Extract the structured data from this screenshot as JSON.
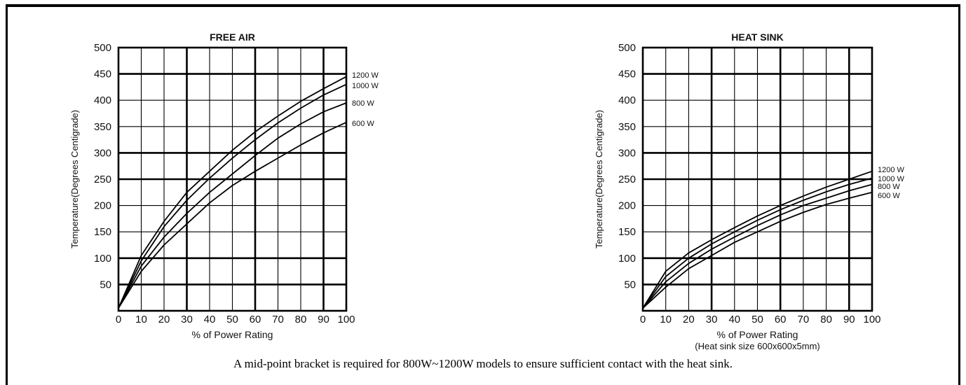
{
  "caption": "A mid-point bracket is required for 800W~1200W models to ensure sufficient contact with the heat sink.",
  "chart_data": [
    {
      "type": "line",
      "title": "FREE AIR",
      "xlabel": "% of Power Rating",
      "xlabel2": "",
      "ylabel": "Temperature(Degrees Centigrade)",
      "xlim": [
        0,
        100
      ],
      "ylim": [
        0,
        500
      ],
      "xticks": [
        "0",
        "10",
        "20",
        "30",
        "40",
        "50",
        "60",
        "70",
        "80",
        "90",
        "100"
      ],
      "yticks": [
        "50",
        "100",
        "150",
        "200",
        "250",
        "300",
        "350",
        "400",
        "450",
        "500"
      ],
      "grid": true,
      "series": [
        {
          "name": "1200 W",
          "x": [
            0,
            10,
            20,
            30,
            40,
            50,
            60,
            70,
            80,
            90,
            100
          ],
          "y": [
            5,
            105,
            170,
            225,
            265,
            305,
            340,
            370,
            398,
            422,
            445
          ]
        },
        {
          "name": "1000 W",
          "x": [
            0,
            10,
            20,
            30,
            40,
            50,
            60,
            70,
            80,
            90,
            100
          ],
          "y": [
            5,
            95,
            160,
            210,
            252,
            290,
            325,
            357,
            385,
            410,
            430
          ]
        },
        {
          "name": "800 W",
          "x": [
            0,
            10,
            20,
            30,
            40,
            50,
            60,
            70,
            80,
            90,
            100
          ],
          "y": [
            5,
            85,
            140,
            185,
            225,
            260,
            295,
            328,
            355,
            378,
            395
          ]
        },
        {
          "name": "600 W",
          "x": [
            0,
            10,
            20,
            30,
            40,
            50,
            60,
            70,
            80,
            90,
            100
          ],
          "y": [
            5,
            75,
            125,
            165,
            205,
            238,
            265,
            290,
            315,
            338,
            358
          ]
        }
      ]
    },
    {
      "type": "line",
      "title": "HEAT SINK",
      "xlabel": "% of Power Rating",
      "xlabel2": "(Heat sink size 600x600x5mm)",
      "ylabel": "Temperature(Degrees Centigrade)",
      "xlim": [
        0,
        100
      ],
      "ylim": [
        0,
        500
      ],
      "xticks": [
        "0",
        "10",
        "20",
        "30",
        "40",
        "50",
        "60",
        "70",
        "80",
        "90",
        "100"
      ],
      "yticks": [
        "50",
        "100",
        "150",
        "200",
        "250",
        "300",
        "350",
        "400",
        "450",
        "500"
      ],
      "grid": true,
      "series": [
        {
          "name": "1200 W",
          "x": [
            0,
            10,
            20,
            30,
            40,
            50,
            60,
            70,
            80,
            90,
            100
          ],
          "y": [
            5,
            75,
            110,
            135,
            158,
            180,
            200,
            218,
            235,
            250,
            265
          ]
        },
        {
          "name": "1000 W",
          "x": [
            0,
            10,
            20,
            30,
            40,
            50,
            60,
            70,
            80,
            90,
            100
          ],
          "y": [
            5,
            65,
            100,
            127,
            150,
            172,
            192,
            210,
            226,
            240,
            252
          ]
        },
        {
          "name": "800 W",
          "x": [
            0,
            10,
            20,
            30,
            40,
            50,
            60,
            70,
            80,
            90,
            100
          ],
          "y": [
            5,
            55,
            90,
            117,
            140,
            162,
            182,
            200,
            214,
            228,
            240
          ]
        },
        {
          "name": "600 W",
          "x": [
            0,
            10,
            20,
            30,
            40,
            50,
            60,
            70,
            80,
            90,
            100
          ],
          "y": [
            5,
            45,
            80,
            105,
            130,
            150,
            170,
            187,
            202,
            214,
            225
          ]
        }
      ]
    }
  ]
}
